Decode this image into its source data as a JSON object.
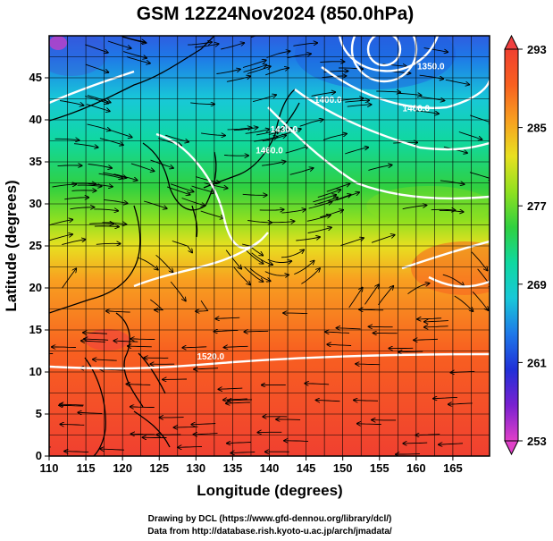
{
  "title": "GSM 12Z24Nov2024 (850.0hPa)",
  "x_axis": {
    "label": "Longitude (degrees)",
    "min": 110,
    "max": 170,
    "ticks": [
      "110",
      "115",
      "120",
      "125",
      "130",
      "135",
      "140",
      "145",
      "150",
      "155",
      "160",
      "165"
    ]
  },
  "y_axis": {
    "label": "Latitude  (degrees)",
    "min": 0,
    "max": 50,
    "ticks": [
      "0",
      "5",
      "10",
      "15",
      "20",
      "25",
      "30",
      "35",
      "40",
      "45"
    ]
  },
  "colorbar": {
    "min": 253,
    "max": 293,
    "ticks": [
      "253",
      "261",
      "269",
      "277",
      "285",
      "293"
    ],
    "colors": [
      "#e040c8",
      "#7a20d0",
      "#2030d8",
      "#1e78e8",
      "#18c8d8",
      "#10d8a0",
      "#30d040",
      "#90e020",
      "#e8e020",
      "#f8a020",
      "#f86020",
      "#f04030"
    ]
  },
  "contours": [
    {
      "label": "1520.0",
      "lon": 132,
      "lat": 11.5
    },
    {
      "label": "1400.0",
      "lon": 148,
      "lat": 42
    },
    {
      "label": "1460.0",
      "lon": 140,
      "lat": 36
    },
    {
      "label": "1430.0",
      "lon": 142,
      "lat": 38.5
    },
    {
      "label": "1350.0",
      "lon": 162,
      "lat": 46
    },
    {
      "label": "1400.0",
      "lon": 160,
      "lat": 41
    }
  ],
  "credits": {
    "line1": "Drawing by DCL (https://www.gfd-dennou.org/library/dcl/)",
    "line2": "Data from http://database.rish.kyoto-u.ac.jp/arch/jmadata/"
  },
  "chart_data": {
    "type": "heatmap",
    "title": "GSM 12Z24Nov2024 (850.0hPa)",
    "xlabel": "Longitude (degrees)",
    "ylabel": "Latitude  (degrees)",
    "xlim": [
      110,
      170
    ],
    "ylim": [
      0,
      50
    ],
    "color_range": [
      253,
      293
    ],
    "colorbar_ticks": [
      253,
      261,
      269,
      277,
      285,
      293
    ],
    "contour_labels": [
      "1520.0",
      "1460.0",
      "1430.0",
      "1400.0",
      "1350.0"
    ]
  }
}
